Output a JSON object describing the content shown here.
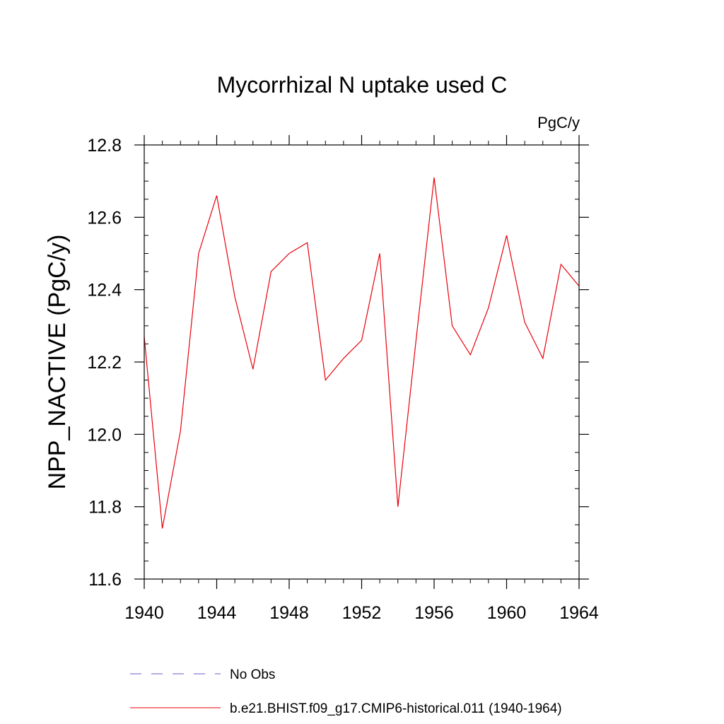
{
  "chart_data": {
    "type": "line",
    "title": "Mycorrhizal N uptake used C",
    "units": "PgC/y",
    "ylabel": "NPP_NACTIVE  (PgC/y)",
    "xlabel": "",
    "xlim": [
      1940,
      1964
    ],
    "ylim": [
      11.6,
      12.8
    ],
    "xticks": [
      1940,
      1944,
      1948,
      1952,
      1956,
      1960,
      1964
    ],
    "yticks": [
      11.6,
      11.8,
      12.0,
      12.2,
      12.4,
      12.6,
      12.8
    ],
    "ytick_labels": [
      "11.6",
      "11.8",
      "12.0",
      "12.2",
      "12.4",
      "12.6",
      "12.8"
    ],
    "grid": false,
    "legend_position": "bottom",
    "series": [
      {
        "name": "b.e21.BHIST.f09_g17.CMIP6-historical.011 (1940-1964)",
        "color": "#e8000b",
        "style": "solid",
        "x": [
          1940,
          1941,
          1942,
          1943,
          1944,
          1945,
          1946,
          1947,
          1948,
          1949,
          1950,
          1951,
          1952,
          1953,
          1954,
          1955,
          1956,
          1957,
          1958,
          1959,
          1960,
          1961,
          1962,
          1963,
          1964
        ],
        "y": [
          12.27,
          11.74,
          12.01,
          12.5,
          12.66,
          12.38,
          12.18,
          12.45,
          12.5,
          12.53,
          12.15,
          12.21,
          12.26,
          12.5,
          11.8,
          12.26,
          12.71,
          12.3,
          12.22,
          12.35,
          12.55,
          12.31,
          12.21,
          12.47,
          12.41
        ]
      }
    ],
    "legend": [
      {
        "label": "No Obs",
        "color": "#6a5acd",
        "style": "dashed"
      },
      {
        "label": "b.e21.BHIST.f09_g17.CMIP6-historical.011 (1940-1964)",
        "color": "#e8000b",
        "style": "solid"
      }
    ]
  }
}
